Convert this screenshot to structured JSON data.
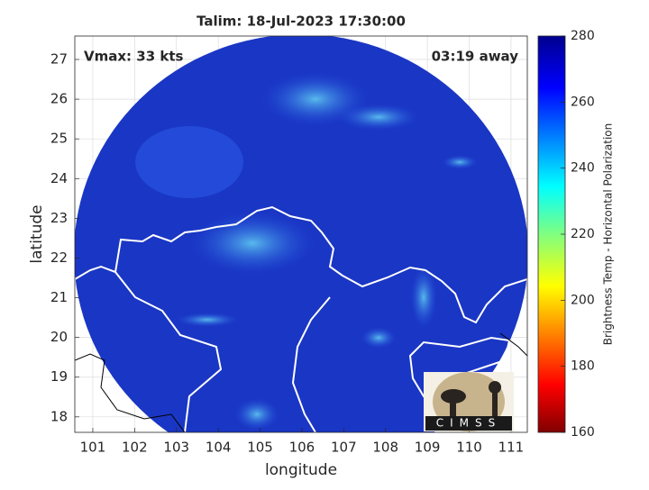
{
  "chart_data": {
    "type": "map",
    "title": "Talim: 18-Jul-2023 17:30:00",
    "annotations": [
      "Vmax: 33 kts",
      "03:19 away"
    ],
    "xlabel": "longitude",
    "ylabel": "latitude",
    "xlim": [
      100.57,
      111.39
    ],
    "xticks": [
      101,
      102,
      103,
      104,
      105,
      106,
      107,
      108,
      109,
      110,
      111
    ],
    "ylim": [
      17.61,
      27.59
    ],
    "yticks": [
      18,
      19,
      20,
      21,
      22,
      23,
      24,
      25,
      26,
      27
    ],
    "grid": true,
    "colorbar": {
      "label": "Brightness Temp - Horizontal Polarization",
      "lim": [
        160,
        280
      ],
      "ticks": [
        160,
        180,
        200,
        220,
        240,
        260,
        280
      ],
      "colormap": "jet"
    },
    "logo": "CIMSS"
  }
}
